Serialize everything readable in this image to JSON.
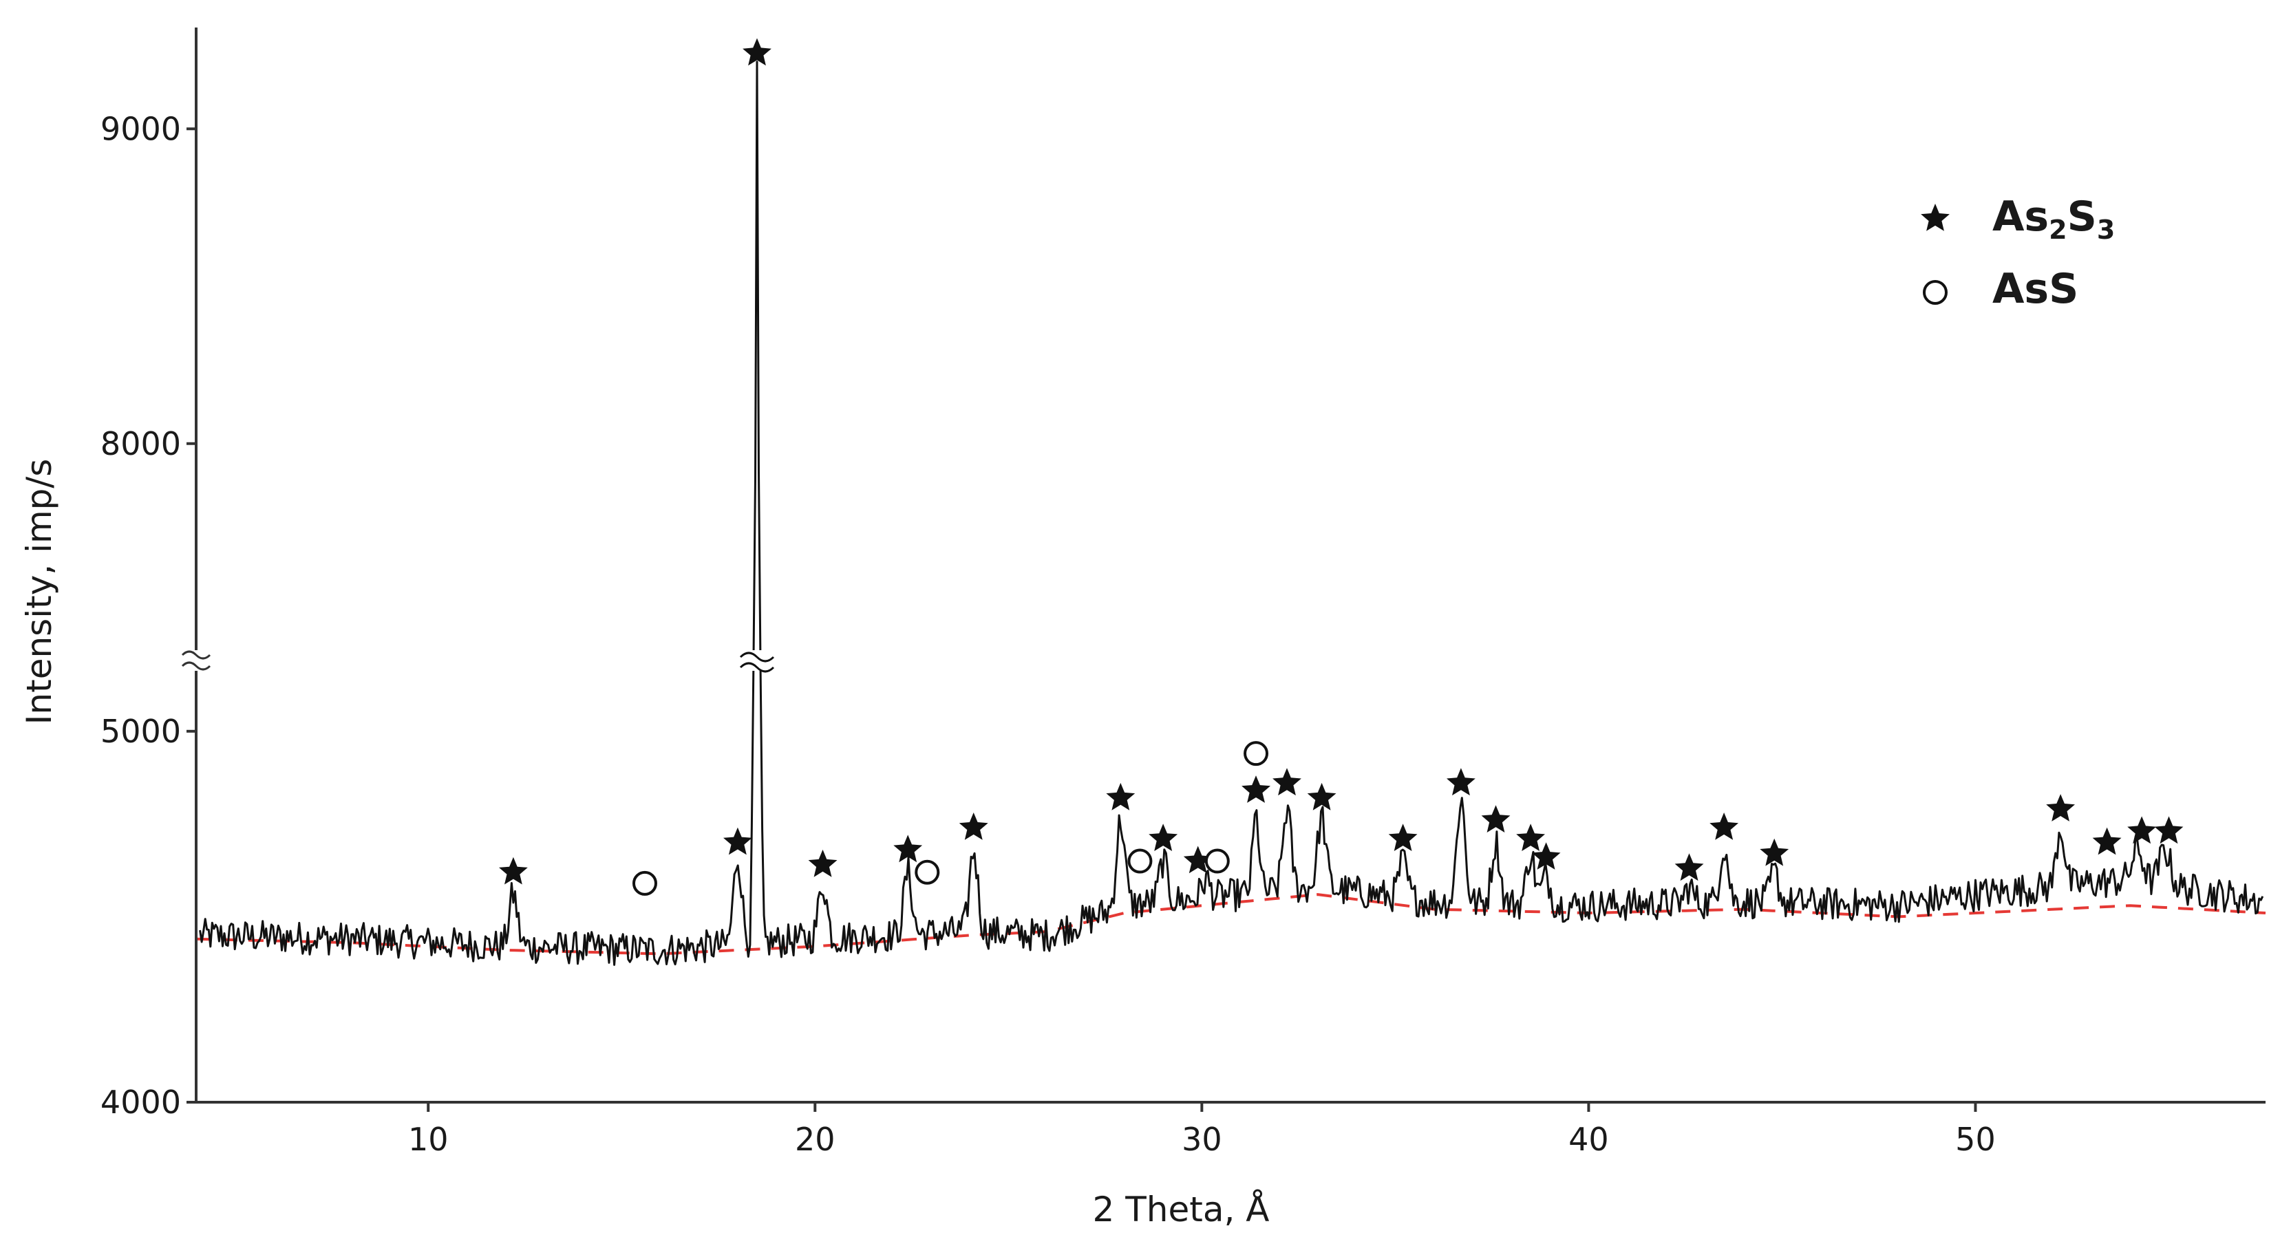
{
  "chart_data": {
    "type": "line",
    "title": "",
    "xlabel": "2 Theta, Å",
    "ylabel": "Intensity, imp/s",
    "xlim": [
      4,
      57.5
    ],
    "ylim": [
      4000,
      9300
    ],
    "y_axis_break": [
      5200,
      7300
    ],
    "x_ticks": [
      10,
      20,
      30,
      40,
      50
    ],
    "y_ticks": [
      4000,
      5000,
      8000,
      9000
    ],
    "grid": false,
    "legend_position": "top-right",
    "legend": [
      {
        "marker": "star",
        "label_main": "As",
        "label_sub1": "2",
        "label_mid": "S",
        "label_sub2": "3"
      },
      {
        "marker": "circle",
        "label_main": "AsS"
      }
    ],
    "baseline": {
      "style": "dashed",
      "color": "#e53935",
      "x": [
        4,
        8,
        12,
        16,
        20,
        24,
        26,
        28,
        31,
        33,
        36,
        40,
        44,
        48,
        50,
        54,
        57.5
      ],
      "y": [
        4440,
        4430,
        4410,
        4400,
        4420,
        4450,
        4460,
        4510,
        4540,
        4560,
        4520,
        4510,
        4520,
        4500,
        4510,
        4530,
        4510
      ]
    },
    "series": [
      {
        "color": "#111111",
        "noise_amplitude": 45,
        "baseline_points": {
          "x": [
            4,
            8,
            12,
            16,
            20,
            24,
            26,
            28,
            31,
            33,
            36,
            40,
            44,
            48,
            50,
            54,
            57.5
          ],
          "y": [
            4450,
            4440,
            4420,
            4410,
            4440,
            4460,
            4450,
            4530,
            4560,
            4580,
            4540,
            4530,
            4540,
            4530,
            4560,
            4600,
            4540
          ]
        },
        "peaks": [
          {
            "x": 12.2,
            "y": 4560,
            "w": 0.15
          },
          {
            "x": 18.0,
            "y": 4660,
            "w": 0.15
          },
          {
            "x": 18.5,
            "y": 9170,
            "w": 0.08
          },
          {
            "x": 20.2,
            "y": 4590,
            "w": 0.15
          },
          {
            "x": 22.4,
            "y": 4620,
            "w": 0.15
          },
          {
            "x": 24.1,
            "y": 4680,
            "w": 0.15
          },
          {
            "x": 27.9,
            "y": 4760,
            "w": 0.15
          },
          {
            "x": 29.0,
            "y": 4650,
            "w": 0.15
          },
          {
            "x": 30.1,
            "y": 4600,
            "w": 0.15
          },
          {
            "x": 31.4,
            "y": 4770,
            "w": 0.12
          },
          {
            "x": 32.2,
            "y": 4790,
            "w": 0.15
          },
          {
            "x": 33.1,
            "y": 4770,
            "w": 0.15
          },
          {
            "x": 35.2,
            "y": 4650,
            "w": 0.15
          },
          {
            "x": 36.7,
            "y": 4820,
            "w": 0.15
          },
          {
            "x": 37.6,
            "y": 4700,
            "w": 0.15
          },
          {
            "x": 38.5,
            "y": 4670,
            "w": 0.15
          },
          {
            "x": 38.9,
            "y": 4610,
            "w": 0.15
          },
          {
            "x": 42.6,
            "y": 4580,
            "w": 0.15
          },
          {
            "x": 43.5,
            "y": 4690,
            "w": 0.15
          },
          {
            "x": 44.8,
            "y": 4620,
            "w": 0.15
          },
          {
            "x": 52.2,
            "y": 4740,
            "w": 0.15
          },
          {
            "x": 54.2,
            "y": 4680,
            "w": 0.2
          },
          {
            "x": 54.9,
            "y": 4680,
            "w": 0.2
          }
        ]
      }
    ],
    "markers": [
      {
        "type": "star",
        "x": 12.2,
        "y": 4620
      },
      {
        "type": "circle",
        "x": 15.6,
        "y": 4590
      },
      {
        "type": "star",
        "x": 18.0,
        "y": 4700
      },
      {
        "type": "star",
        "x": 18.5,
        "y": 9240
      },
      {
        "type": "star",
        "x": 20.2,
        "y": 4640
      },
      {
        "type": "circle",
        "x": 22.9,
        "y": 4620
      },
      {
        "type": "star",
        "x": 22.4,
        "y": 4680
      },
      {
        "type": "star",
        "x": 24.1,
        "y": 4740
      },
      {
        "type": "star",
        "x": 27.9,
        "y": 4820
      },
      {
        "type": "circle",
        "x": 28.4,
        "y": 4650
      },
      {
        "type": "star",
        "x": 29.0,
        "y": 4710
      },
      {
        "type": "star",
        "x": 29.9,
        "y": 4650
      },
      {
        "type": "circle",
        "x": 30.4,
        "y": 4650
      },
      {
        "type": "circle",
        "x": 31.4,
        "y": 4940
      },
      {
        "type": "star",
        "x": 31.4,
        "y": 4840
      },
      {
        "type": "star",
        "x": 32.2,
        "y": 4860
      },
      {
        "type": "star",
        "x": 33.1,
        "y": 4820
      },
      {
        "type": "star",
        "x": 35.2,
        "y": 4710
      },
      {
        "type": "star",
        "x": 36.7,
        "y": 4860
      },
      {
        "type": "star",
        "x": 37.6,
        "y": 4760
      },
      {
        "type": "star",
        "x": 38.5,
        "y": 4710
      },
      {
        "type": "star",
        "x": 38.9,
        "y": 4660
      },
      {
        "type": "star",
        "x": 42.6,
        "y": 4630
      },
      {
        "type": "star",
        "x": 43.5,
        "y": 4740
      },
      {
        "type": "star",
        "x": 44.8,
        "y": 4670
      },
      {
        "type": "star",
        "x": 52.2,
        "y": 4790
      },
      {
        "type": "star",
        "x": 53.4,
        "y": 4700
      },
      {
        "type": "star",
        "x": 54.3,
        "y": 4730
      },
      {
        "type": "star",
        "x": 55.0,
        "y": 4730
      }
    ]
  }
}
